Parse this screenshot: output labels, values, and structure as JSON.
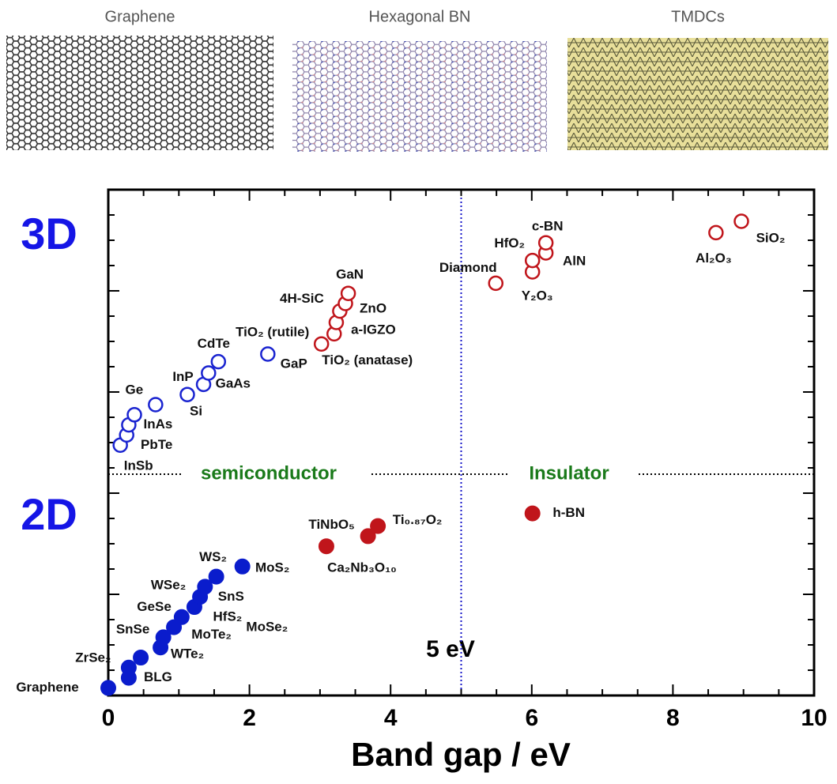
{
  "panels": {
    "titles": [
      "Graphene",
      "Hexagonal BN",
      "TMDCs"
    ]
  },
  "chart_data": {
    "type": "scatter",
    "xlabel": "Band gap / eV",
    "xlim": [
      0,
      10
    ],
    "xticks": [
      0,
      2,
      4,
      6,
      8,
      10
    ],
    "ylim": [
      0,
      20
    ],
    "yticks": [
      0,
      1,
      2,
      3,
      4,
      5,
      6,
      7,
      8,
      9,
      10,
      11,
      12,
      13,
      14,
      15,
      16,
      17,
      18,
      19,
      20
    ],
    "vline": 5,
    "vline_label": "5 eV",
    "hline": 8.75,
    "dimension_labels": [
      "3D",
      "2D"
    ],
    "class_labels": [
      "semiconductor",
      "Insulator"
    ],
    "series": [
      {
        "color": "#1a24d0",
        "filled": false,
        "x": [
          0.17,
          0.26,
          0.29,
          0.37,
          0.67,
          1.12,
          1.35,
          1.42,
          1.56,
          2.26
        ],
        "values": [
          9.9,
          10.3,
          10.7,
          11.1,
          11.5,
          11.9,
          12.3,
          12.75,
          13.2,
          13.5
        ],
        "labels": [
          "InSb",
          "PbTe",
          "InAs",
          null,
          "Ge",
          "Si",
          "InP",
          "GaAs",
          "CdTe",
          "GaP"
        ]
      },
      {
        "color": "#c0151b",
        "filled": false,
        "x": [
          3.02,
          3.2,
          3.23,
          3.28,
          3.36,
          3.4,
          5.49,
          6.01,
          6.01,
          6.2,
          6.2,
          8.61,
          8.97
        ],
        "values": [
          13.9,
          14.3,
          14.75,
          15.2,
          15.5,
          15.9,
          16.3,
          16.75,
          17.2,
          17.5,
          17.9,
          18.3,
          18.75
        ],
        "labels": [
          "TiO₂ (rutile)",
          "TiO₂ (anatase)",
          "a-IGZO",
          "4H-SiC",
          "ZnO",
          "GaN",
          "Diamond",
          "Y₂O₃",
          "HfO₂",
          "AlN",
          "c-BN",
          "Al₂O₃",
          "SiO₂"
        ]
      },
      {
        "color": "#0a1ccc",
        "filled": true,
        "x": [
          0,
          0.29,
          0.29,
          0.46,
          0.74,
          0.78,
          0.93,
          1.04,
          1.22,
          1.3,
          1.37,
          1.53,
          1.9
        ],
        "values": [
          0.3,
          0.7,
          1.1,
          1.5,
          1.9,
          2.3,
          2.7,
          3.1,
          3.5,
          3.9,
          4.3,
          4.7,
          5.1
        ],
        "labels": [
          "Graphene",
          "BLG",
          "ZrSe₂",
          "WTe₂",
          "SnSe",
          "MoTe₂",
          "GeSe",
          "MoSe₂",
          "HfS₂",
          "WSe₂",
          "SnS",
          "WS₂",
          "MoS₂"
        ]
      },
      {
        "color": "#c0151b",
        "filled": true,
        "x": [
          3.09,
          3.68,
          3.82,
          6.01
        ],
        "values": [
          5.9,
          6.3,
          6.7,
          7.2
        ],
        "labels": [
          "Ca₂Nb₃O₁₀",
          "TiNbO₅",
          "Ti₀.₈₇O₂",
          "h-BN"
        ]
      }
    ]
  }
}
